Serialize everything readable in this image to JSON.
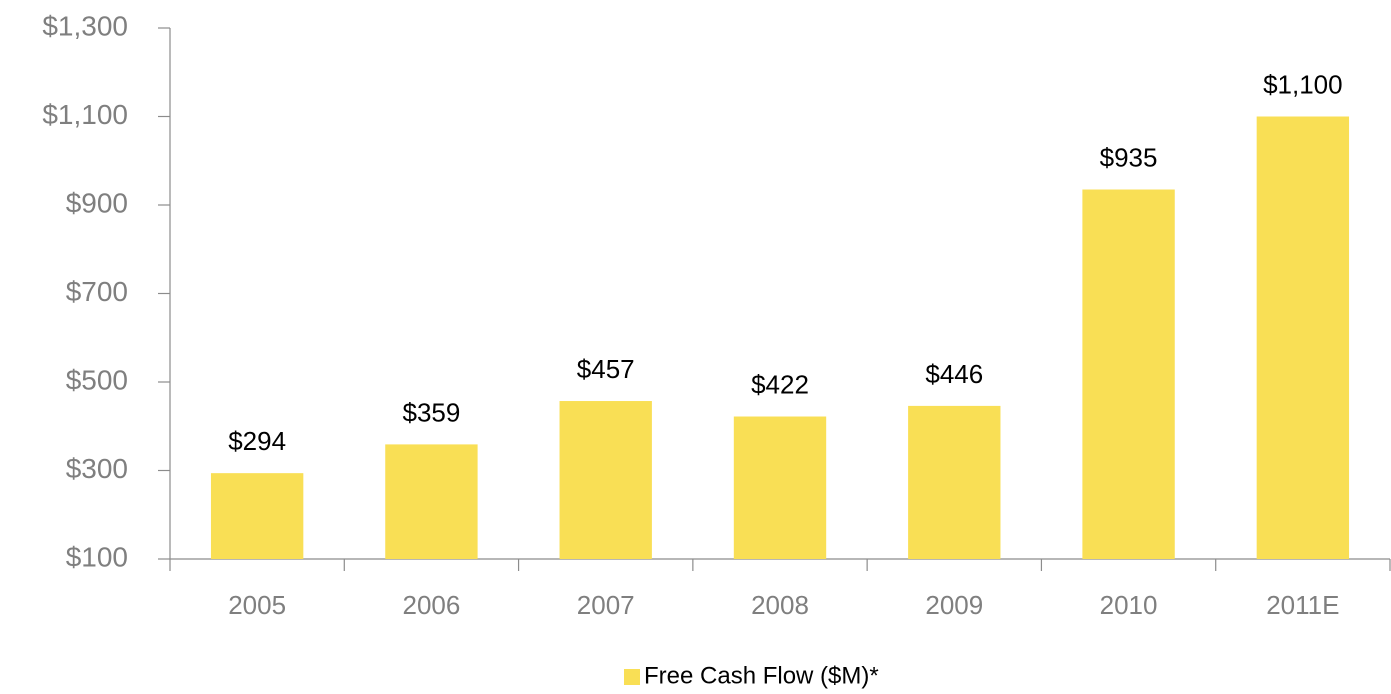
{
  "chart_data": {
    "type": "bar",
    "categories": [
      "2005",
      "2006",
      "2007",
      "2008",
      "2009",
      "2010",
      "2011E"
    ],
    "series": [
      {
        "name": "Free Cash Flow ($M)*",
        "color": "#f9df55",
        "values": [
          294,
          359,
          457,
          422,
          446,
          935,
          1100
        ],
        "value_labels": [
          "$294",
          "$359",
          "$457",
          "$422",
          "$446",
          "$935",
          "$1,100"
        ]
      }
    ],
    "ylim": [
      100,
      1300
    ],
    "yticks": [
      {
        "value": 100,
        "label": "$100"
      },
      {
        "value": 300,
        "label": "$300"
      },
      {
        "value": 500,
        "label": "$500"
      },
      {
        "value": 700,
        "label": "$700"
      },
      {
        "value": 900,
        "label": "$900"
      },
      {
        "value": 1100,
        "label": "$1,100"
      },
      {
        "value": 1300,
        "label": "$1,300"
      }
    ],
    "grid": false,
    "legend": "bottom"
  }
}
